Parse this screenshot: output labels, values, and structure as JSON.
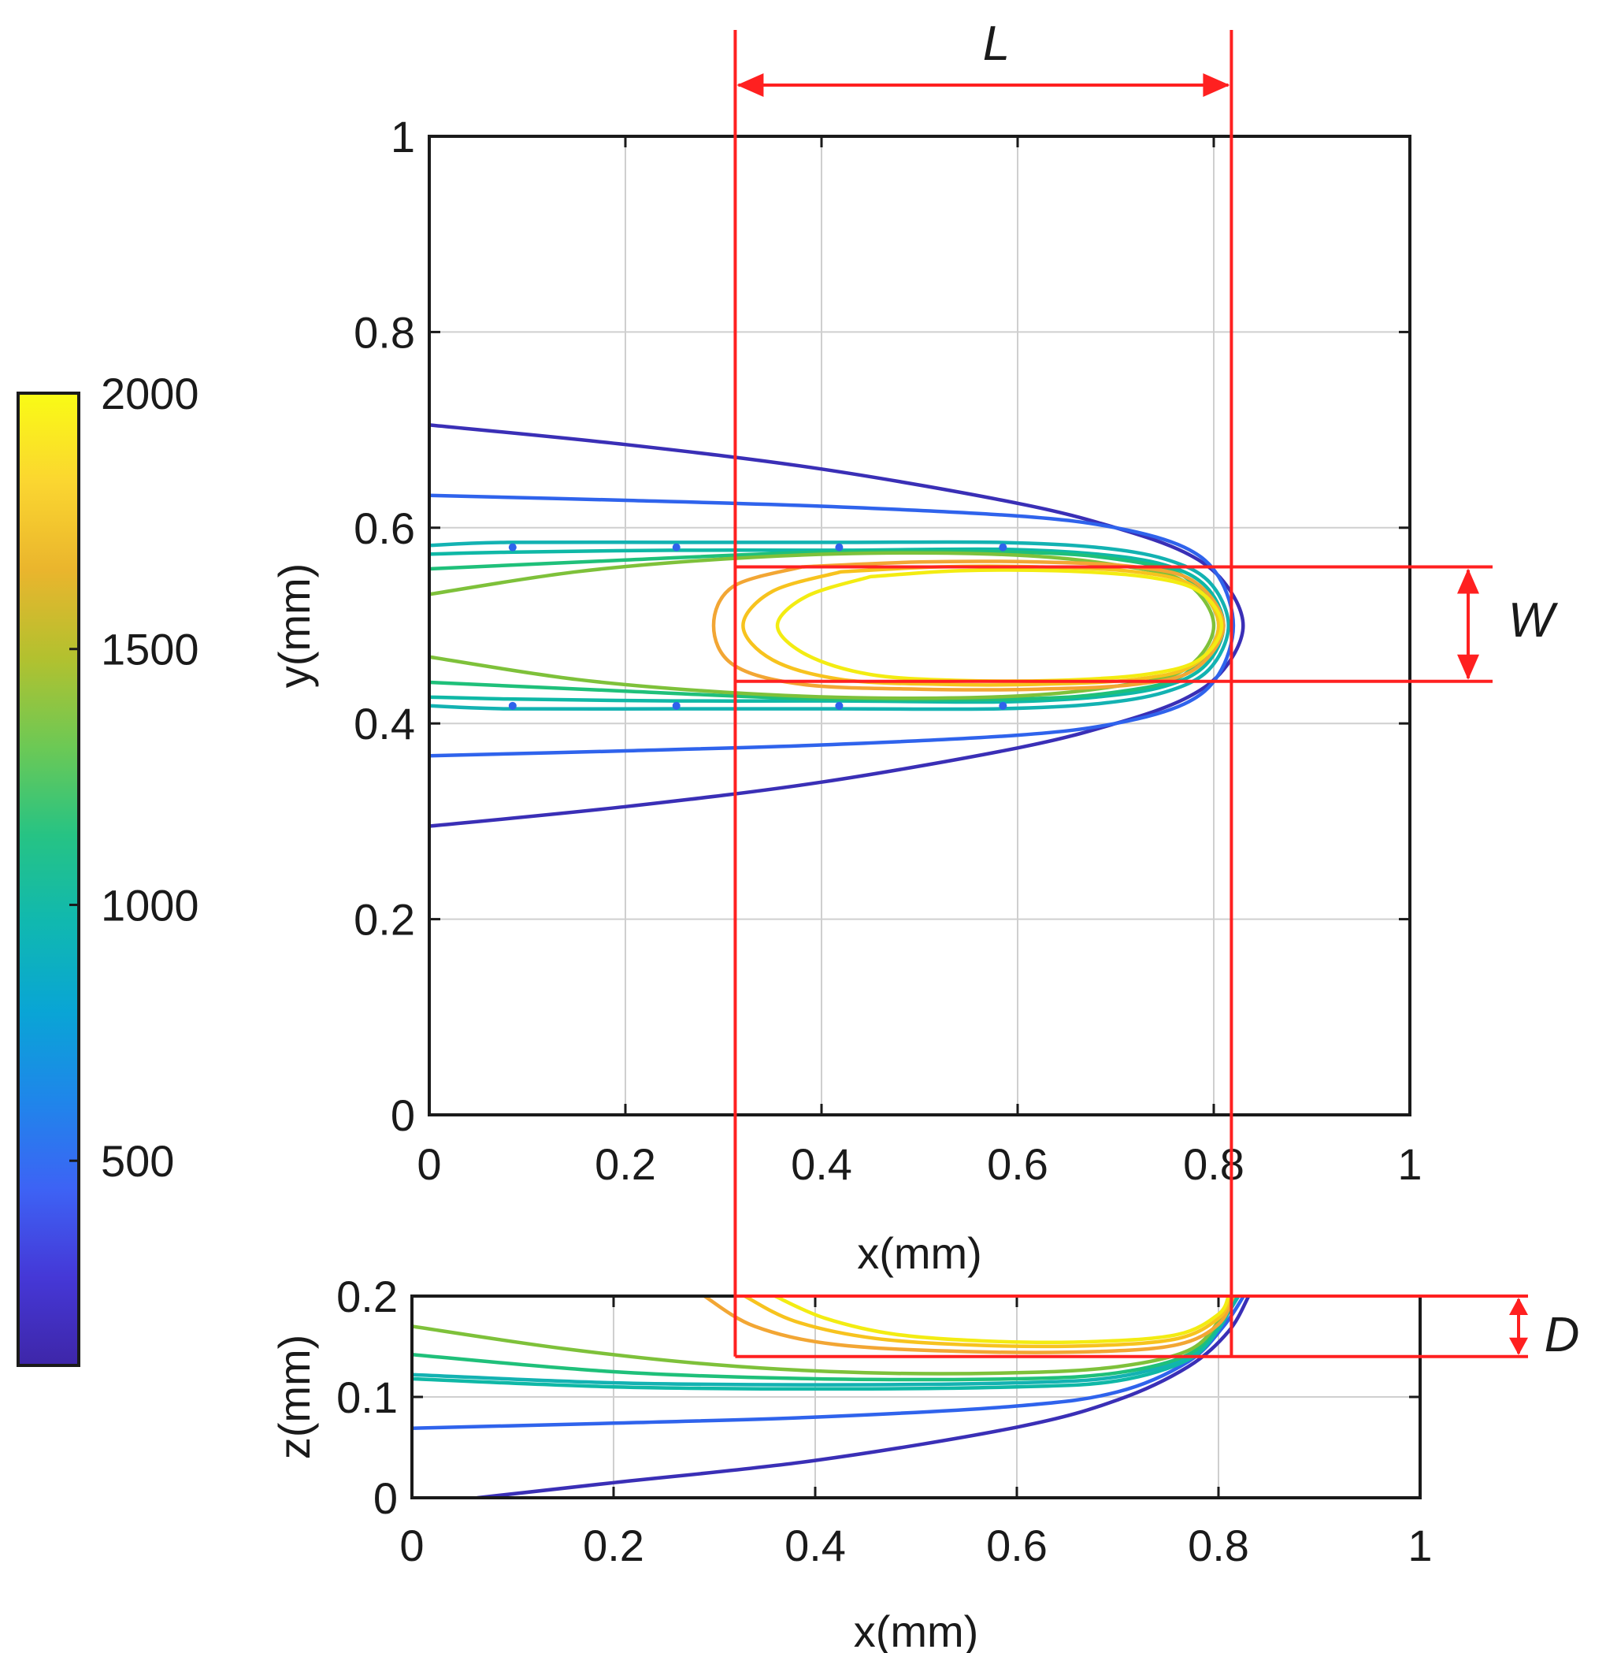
{
  "chart_data": [
    {
      "type": "contour",
      "view": "top",
      "xlabel": "x(mm)",
      "ylabel": "y(mm)",
      "xlim": [
        0,
        1
      ],
      "ylim": [
        0,
        1
      ],
      "xticks": [
        "0",
        "0.2",
        "0.4",
        "0.6",
        "0.8",
        "1"
      ],
      "yticks": [
        "0",
        "0.2",
        "0.4",
        "0.6",
        "0.8",
        "1"
      ],
      "grid": true,
      "series": [
        {
          "name": "contour-400",
          "color": "#3a2fb6",
          "points": [
            [
              0,
              0.705
            ],
            [
              0.2,
              0.685
            ],
            [
              0.4,
              0.66
            ],
            [
              0.6,
              0.625
            ],
            [
              0.7,
              0.6
            ],
            [
              0.77,
              0.575
            ],
            [
              0.81,
              0.545
            ],
            [
              0.83,
              0.5
            ],
            [
              0.81,
              0.455
            ],
            [
              0.77,
              0.425
            ],
            [
              0.7,
              0.4
            ],
            [
              0.6,
              0.375
            ],
            [
              0.4,
              0.34
            ],
            [
              0.2,
              0.315
            ],
            [
              0,
              0.295
            ]
          ]
        },
        {
          "name": "contour-600",
          "color": "#2f63ec",
          "points": [
            [
              0,
              0.633
            ],
            [
              0.2,
              0.628
            ],
            [
              0.4,
              0.622
            ],
            [
              0.6,
              0.612
            ],
            [
              0.7,
              0.6
            ],
            [
              0.77,
              0.58
            ],
            [
              0.805,
              0.55
            ],
            [
              0.82,
              0.5
            ],
            [
              0.805,
              0.45
            ],
            [
              0.77,
              0.42
            ],
            [
              0.7,
              0.4
            ],
            [
              0.6,
              0.388
            ],
            [
              0.4,
              0.378
            ],
            [
              0.2,
              0.372
            ],
            [
              0,
              0.367
            ]
          ]
        },
        {
          "name": "contour-1100-outer",
          "color": "#13b2b2",
          "points": [
            [
              0,
              0.582
            ],
            [
              0.08,
              0.585
            ],
            [
              0.25,
              0.585
            ],
            [
              0.42,
              0.585
            ],
            [
              0.58,
              0.585
            ],
            [
              0.68,
              0.58
            ],
            [
              0.75,
              0.568
            ],
            [
              0.795,
              0.545
            ],
            [
              0.815,
              0.5
            ],
            [
              0.795,
              0.455
            ],
            [
              0.75,
              0.432
            ],
            [
              0.68,
              0.42
            ],
            [
              0.58,
              0.415
            ],
            [
              0.42,
              0.415
            ],
            [
              0.25,
              0.415
            ],
            [
              0.08,
              0.415
            ],
            [
              0,
              0.418
            ]
          ]
        },
        {
          "name": "contour-1100-inner",
          "color": "#0fb8a6",
          "points": [
            [
              0,
              0.573
            ],
            [
              0.08,
              0.575
            ],
            [
              0.25,
              0.577
            ],
            [
              0.42,
              0.577
            ],
            [
              0.58,
              0.578
            ],
            [
              0.68,
              0.573
            ],
            [
              0.75,
              0.562
            ],
            [
              0.792,
              0.54
            ],
            [
              0.81,
              0.5
            ],
            [
              0.792,
              0.46
            ],
            [
              0.75,
              0.438
            ],
            [
              0.68,
              0.427
            ],
            [
              0.58,
              0.422
            ],
            [
              0.42,
              0.423
            ],
            [
              0.25,
              0.423
            ],
            [
              0.08,
              0.425
            ],
            [
              0,
              0.427
            ]
          ]
        },
        {
          "name": "contour-1300",
          "color": "#1fc07a",
          "points": [
            [
              0,
              0.558
            ],
            [
              0.2,
              0.567
            ],
            [
              0.4,
              0.575
            ],
            [
              0.6,
              0.575
            ],
            [
              0.7,
              0.568
            ],
            [
              0.77,
              0.55
            ],
            [
              0.805,
              0.5
            ],
            [
              0.77,
              0.45
            ],
            [
              0.7,
              0.432
            ],
            [
              0.6,
              0.425
            ],
            [
              0.4,
              0.425
            ],
            [
              0.2,
              0.433
            ],
            [
              0,
              0.442
            ]
          ]
        },
        {
          "name": "contour-1500",
          "color": "#7ec13a",
          "points": [
            [
              0,
              0.532
            ],
            [
              0.15,
              0.555
            ],
            [
              0.3,
              0.568
            ],
            [
              0.45,
              0.574
            ],
            [
              0.6,
              0.572
            ],
            [
              0.7,
              0.562
            ],
            [
              0.77,
              0.545
            ],
            [
              0.8,
              0.5
            ],
            [
              0.77,
              0.455
            ],
            [
              0.7,
              0.438
            ],
            [
              0.6,
              0.428
            ],
            [
              0.45,
              0.426
            ],
            [
              0.3,
              0.432
            ],
            [
              0.15,
              0.445
            ],
            [
              0,
              0.468
            ]
          ]
        },
        {
          "name": "contour-1700",
          "color": "#f2a634",
          "points": [
            [
              0.38,
              0.56
            ],
            [
              0.5,
              0.565
            ],
            [
              0.62,
              0.565
            ],
            [
              0.72,
              0.56
            ],
            [
              0.78,
              0.545
            ],
            [
              0.81,
              0.5
            ],
            [
              0.78,
              0.455
            ],
            [
              0.72,
              0.44
            ],
            [
              0.62,
              0.435
            ],
            [
              0.5,
              0.435
            ],
            [
              0.38,
              0.44
            ],
            [
              0.31,
              0.46
            ],
            [
              0.29,
              0.5
            ],
            [
              0.31,
              0.54
            ],
            [
              0.38,
              0.56
            ]
          ]
        },
        {
          "name": "contour-1800",
          "color": "#f7c31e",
          "points": [
            [
              0.42,
              0.555
            ],
            [
              0.52,
              0.56
            ],
            [
              0.62,
              0.56
            ],
            [
              0.72,
              0.555
            ],
            [
              0.78,
              0.54
            ],
            [
              0.805,
              0.5
            ],
            [
              0.78,
              0.46
            ],
            [
              0.72,
              0.445
            ],
            [
              0.62,
              0.44
            ],
            [
              0.52,
              0.44
            ],
            [
              0.42,
              0.445
            ],
            [
              0.35,
              0.465
            ],
            [
              0.32,
              0.5
            ],
            [
              0.35,
              0.535
            ],
            [
              0.42,
              0.555
            ]
          ]
        },
        {
          "name": "contour-2000",
          "color": "#f3ec12",
          "points": [
            [
              0.45,
              0.55
            ],
            [
              0.54,
              0.556
            ],
            [
              0.64,
              0.556
            ],
            [
              0.73,
              0.55
            ],
            [
              0.785,
              0.535
            ],
            [
              0.808,
              0.5
            ],
            [
              0.785,
              0.465
            ],
            [
              0.73,
              0.45
            ],
            [
              0.64,
              0.444
            ],
            [
              0.54,
              0.444
            ],
            [
              0.45,
              0.45
            ],
            [
              0.385,
              0.47
            ],
            [
              0.355,
              0.5
            ],
            [
              0.385,
              0.53
            ],
            [
              0.45,
              0.55
            ]
          ]
        }
      ],
      "markers": [
        [
          0.085,
          0.58
        ],
        [
          0.252,
          0.58
        ],
        [
          0.418,
          0.58
        ],
        [
          0.585,
          0.58
        ],
        [
          0.085,
          0.418
        ],
        [
          0.252,
          0.418
        ],
        [
          0.418,
          0.418
        ],
        [
          0.585,
          0.418
        ]
      ],
      "marker_color": "#2f63ec"
    },
    {
      "type": "contour",
      "view": "side",
      "xlabel": "x(mm)",
      "ylabel": "z(mm)",
      "xlim": [
        0,
        1
      ],
      "ylim": [
        0,
        0.2
      ],
      "xticks": [
        "0",
        "0.2",
        "0.4",
        "0.6",
        "0.8",
        "1"
      ],
      "yticks": [
        "0",
        "0.1",
        "0.2"
      ],
      "grid": true,
      "series": [
        {
          "name": "contour-400",
          "color": "#3a2fb6",
          "points": [
            [
              0.065,
              0
            ],
            [
              0.2,
              0.015
            ],
            [
              0.4,
              0.037
            ],
            [
              0.6,
              0.07
            ],
            [
              0.7,
              0.097
            ],
            [
              0.77,
              0.13
            ],
            [
              0.81,
              0.165
            ],
            [
              0.83,
              0.2
            ]
          ]
        },
        {
          "name": "contour-600",
          "color": "#2f63ec",
          "points": [
            [
              0,
              0.069
            ],
            [
              0.2,
              0.074
            ],
            [
              0.4,
              0.08
            ],
            [
              0.6,
              0.091
            ],
            [
              0.7,
              0.105
            ],
            [
              0.77,
              0.135
            ],
            [
              0.805,
              0.17
            ],
            [
              0.825,
              0.2
            ]
          ]
        },
        {
          "name": "contour-1100-outer",
          "color": "#13b2b2",
          "points": [
            [
              0,
              0.122
            ],
            [
              0.2,
              0.114
            ],
            [
              0.4,
              0.112
            ],
            [
              0.6,
              0.114
            ],
            [
              0.7,
              0.12
            ],
            [
              0.77,
              0.14
            ],
            [
              0.8,
              0.17
            ],
            [
              0.82,
              0.2
            ]
          ]
        },
        {
          "name": "contour-1100-inner",
          "color": "#0fb8a6",
          "points": [
            [
              0,
              0.118
            ],
            [
              0.2,
              0.11
            ],
            [
              0.4,
              0.108
            ],
            [
              0.6,
              0.11
            ],
            [
              0.7,
              0.116
            ],
            [
              0.77,
              0.137
            ],
            [
              0.8,
              0.167
            ],
            [
              0.818,
              0.2
            ]
          ]
        },
        {
          "name": "contour-1300",
          "color": "#1fc07a",
          "points": [
            [
              0,
              0.142
            ],
            [
              0.2,
              0.125
            ],
            [
              0.4,
              0.118
            ],
            [
              0.6,
              0.118
            ],
            [
              0.7,
              0.124
            ],
            [
              0.77,
              0.142
            ],
            [
              0.8,
              0.172
            ],
            [
              0.815,
              0.2
            ]
          ]
        },
        {
          "name": "contour-1500",
          "color": "#7ec13a",
          "points": [
            [
              0,
              0.17
            ],
            [
              0.15,
              0.148
            ],
            [
              0.3,
              0.132
            ],
            [
              0.45,
              0.124
            ],
            [
              0.6,
              0.124
            ],
            [
              0.7,
              0.13
            ],
            [
              0.77,
              0.146
            ],
            [
              0.8,
              0.175
            ],
            [
              0.81,
              0.2
            ]
          ]
        },
        {
          "name": "contour-1700",
          "color": "#f2a634",
          "points": [
            [
              0.29,
              0.2
            ],
            [
              0.34,
              0.17
            ],
            [
              0.42,
              0.152
            ],
            [
              0.55,
              0.145
            ],
            [
              0.68,
              0.145
            ],
            [
              0.76,
              0.152
            ],
            [
              0.8,
              0.172
            ],
            [
              0.815,
              0.2
            ]
          ]
        },
        {
          "name": "contour-1800",
          "color": "#f7c31e",
          "points": [
            [
              0.33,
              0.2
            ],
            [
              0.38,
              0.175
            ],
            [
              0.46,
              0.158
            ],
            [
              0.57,
              0.151
            ],
            [
              0.68,
              0.151
            ],
            [
              0.76,
              0.158
            ],
            [
              0.8,
              0.178
            ],
            [
              0.812,
              0.2
            ]
          ]
        },
        {
          "name": "contour-2000",
          "color": "#f3ec12",
          "points": [
            [
              0.36,
              0.2
            ],
            [
              0.41,
              0.178
            ],
            [
              0.48,
              0.162
            ],
            [
              0.58,
              0.155
            ],
            [
              0.68,
              0.155
            ],
            [
              0.76,
              0.162
            ],
            [
              0.8,
              0.182
            ],
            [
              0.81,
              0.2
            ]
          ]
        }
      ]
    }
  ],
  "colorbar": {
    "min": 100,
    "max": 2000,
    "tick_values": [
      500,
      1000,
      1500,
      2000
    ],
    "tick_labels": [
      "500",
      "1000",
      "1500",
      "2000"
    ],
    "stops": [
      "#3e26a8",
      "#4538d7",
      "#3d63f5",
      "#1f86ea",
      "#09a5d5",
      "#10b8b0",
      "#26c384",
      "#6cc955",
      "#b2c12f",
      "#eab52d",
      "#fbd630",
      "#f9fb15"
    ]
  },
  "annotations": {
    "length_label": "L",
    "width_label": "W",
    "depth_label": "D",
    "color": "#ff2020",
    "box_x": [
      0.312,
      0.818
    ],
    "box_y": [
      0.443,
      0.56
    ],
    "box_z": [
      0.14,
      0.2
    ]
  }
}
